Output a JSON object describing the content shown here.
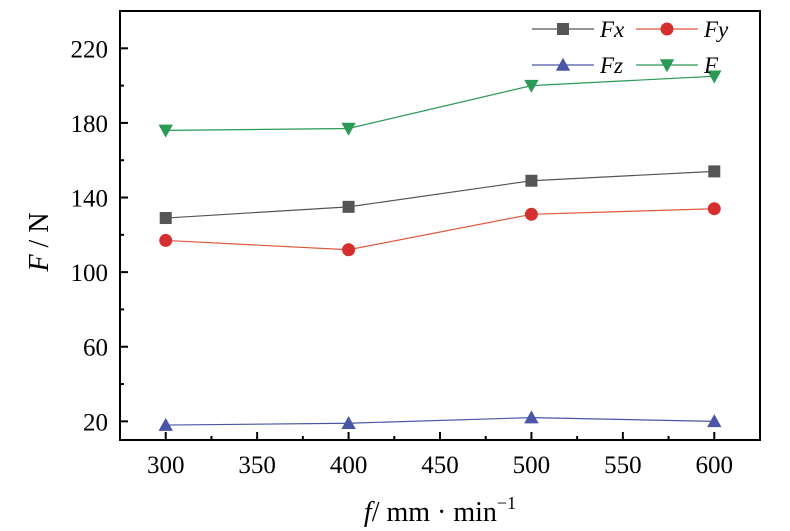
{
  "chart_data": {
    "type": "line",
    "title": "",
    "x": [
      300,
      400,
      500,
      600
    ],
    "x_ticks": [
      300,
      350,
      400,
      450,
      500,
      550,
      600
    ],
    "xlim": [
      275,
      625
    ],
    "y_ticks": [
      20,
      60,
      100,
      140,
      180,
      220
    ],
    "ylim": [
      10,
      240
    ],
    "xlabel": {
      "var": "f",
      "unit": "/ mm · min",
      "exp": "−1"
    },
    "ylabel": {
      "var": "F",
      "unit": " / N"
    },
    "grid": false,
    "legend_position": "top-right",
    "series": [
      {
        "name": "Fx",
        "values": [
          129,
          135,
          149,
          154
        ],
        "color": "#555555",
        "marker": "square"
      },
      {
        "name": "Fy",
        "values": [
          117,
          112,
          131,
          134
        ],
        "color": "#e0583a",
        "marker_color": "#d62f2f",
        "marker": "circle"
      },
      {
        "name": "Fz",
        "values": [
          18,
          19,
          22,
          20
        ],
        "color": "#4a56a6",
        "marker": "triangle-up"
      },
      {
        "name": "F",
        "values": [
          176,
          177,
          200,
          205
        ],
        "color": "#2a9a55",
        "marker": "triangle-down"
      }
    ]
  }
}
